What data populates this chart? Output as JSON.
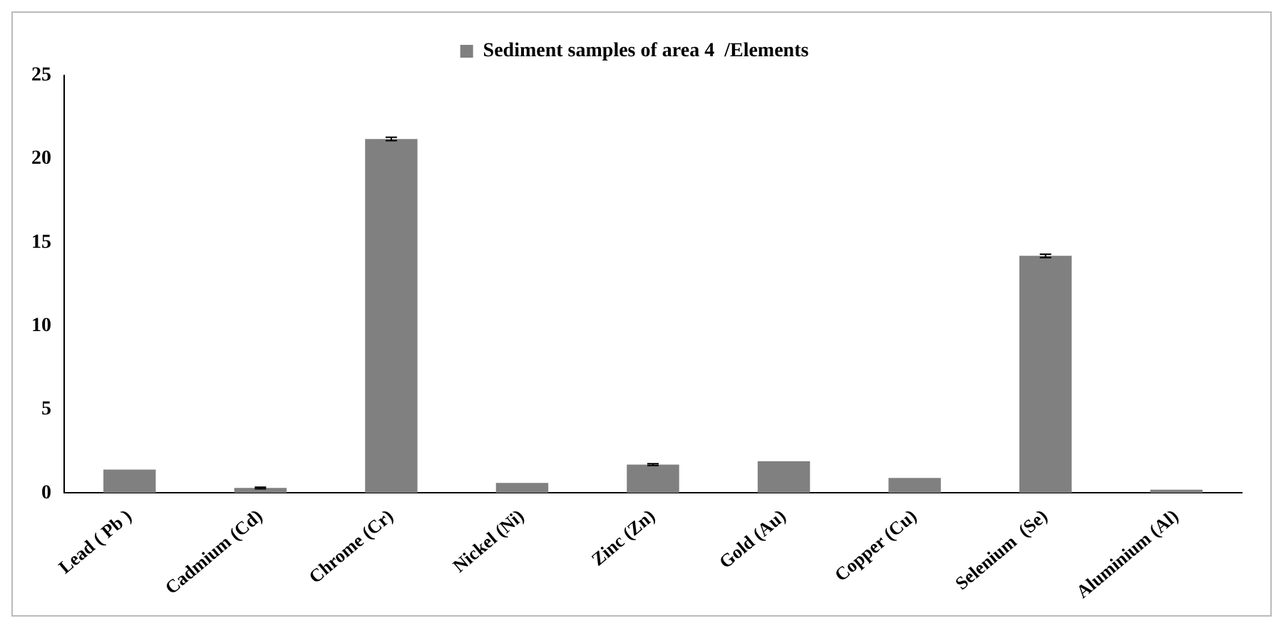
{
  "chart_data": {
    "type": "bar",
    "categories": [
      "Lead ( Pb )",
      "Cadmium (Cd)",
      "Chrome (Cr)",
      "Nickel (Ni)",
      "Zinc (Zn)",
      "Gold (Au)",
      "Copper (Cu)",
      "Selenium  (Se)",
      "Aluminium (Al)"
    ],
    "series": [
      {
        "name": "Sediment samples of area 4  /Elements",
        "color": "#808080",
        "values": [
          1.4,
          0.3,
          21.2,
          0.6,
          1.7,
          1.9,
          0.9,
          14.2,
          0.2
        ],
        "errors": [
          null,
          0.05,
          0.1,
          null,
          0.05,
          null,
          null,
          0.1,
          null
        ]
      }
    ],
    "ylim": [
      0,
      25
    ],
    "yticks": [
      0,
      5,
      10,
      15,
      20,
      25
    ],
    "grid": false,
    "legend": "top"
  }
}
